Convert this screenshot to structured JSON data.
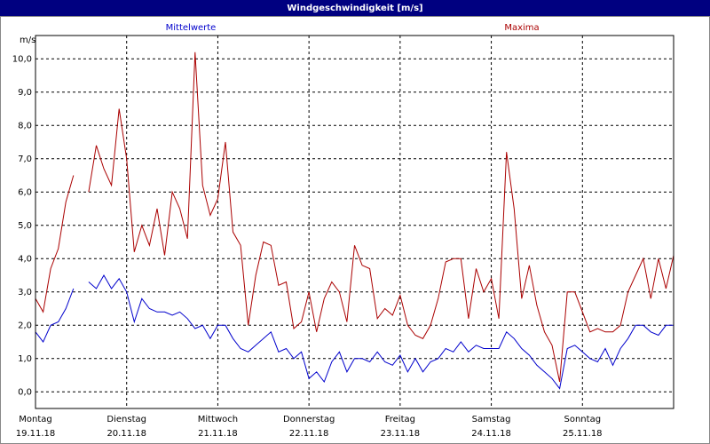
{
  "chart_data": {
    "type": "line",
    "title": "Windgeschwindigkeit [m/s]",
    "y_label": "m/s",
    "x": [
      0,
      2,
      4,
      6,
      8,
      10,
      12,
      14,
      16,
      18,
      20,
      22,
      24,
      26,
      28,
      30,
      32,
      34,
      36,
      38,
      40,
      42,
      44,
      46,
      48,
      50,
      52,
      54,
      56,
      58,
      60,
      62,
      64,
      66,
      68,
      70,
      72,
      74,
      76,
      78,
      80,
      82,
      84,
      86,
      88,
      90,
      92,
      94,
      96,
      98,
      100,
      102,
      104,
      106,
      108,
      110,
      112,
      114,
      116,
      118,
      120,
      122,
      124,
      126,
      128,
      130,
      132,
      134,
      136,
      138,
      140,
      142,
      144,
      146,
      148,
      150,
      152,
      154,
      156,
      158,
      160,
      162,
      164,
      166,
      168
    ],
    "series": [
      {
        "name": "Mittelwerte",
        "color": "#0000cc",
        "values": [
          1.8,
          1.5,
          2.0,
          2.1,
          2.5,
          3.1,
          null,
          3.3,
          3.1,
          3.5,
          3.1,
          3.4,
          3.0,
          2.1,
          2.8,
          2.5,
          2.4,
          2.4,
          2.3,
          2.4,
          2.2,
          1.9,
          2.0,
          1.6,
          2.0,
          2.0,
          1.6,
          1.3,
          1.2,
          1.4,
          1.6,
          1.8,
          1.2,
          1.3,
          1.0,
          1.2,
          0.4,
          0.6,
          0.3,
          0.9,
          1.2,
          0.6,
          1.0,
          1.0,
          0.9,
          1.2,
          0.9,
          0.8,
          1.1,
          0.6,
          1.0,
          0.6,
          0.9,
          1.0,
          1.3,
          1.2,
          1.5,
          1.2,
          1.4,
          1.3,
          1.3,
          1.3,
          1.8,
          1.6,
          1.3,
          1.1,
          0.8,
          0.6,
          0.4,
          0.1,
          1.3,
          1.4,
          1.2,
          1.0,
          0.9,
          1.3,
          0.8,
          1.3,
          1.6,
          2.0,
          2.0,
          1.8,
          1.7,
          2.0,
          2.0
        ]
      },
      {
        "name": "Maxima",
        "color": "#aa0000",
        "values": [
          2.8,
          2.4,
          3.7,
          4.3,
          5.7,
          6.5,
          null,
          6.0,
          7.4,
          6.7,
          6.2,
          8.5,
          7.0,
          4.2,
          5.0,
          4.4,
          5.5,
          4.1,
          6.0,
          5.5,
          4.6,
          10.2,
          6.2,
          5.3,
          5.8,
          7.5,
          4.8,
          4.4,
          2.0,
          3.5,
          4.5,
          4.4,
          3.2,
          3.3,
          1.9,
          2.1,
          3.0,
          1.8,
          2.8,
          3.3,
          3.0,
          2.1,
          4.4,
          3.8,
          3.7,
          2.2,
          2.5,
          2.3,
          2.9,
          2.0,
          1.7,
          1.6,
          2.0,
          2.8,
          3.9,
          4.0,
          4.0,
          2.2,
          3.7,
          3.0,
          3.4,
          2.2,
          7.2,
          5.5,
          2.8,
          3.8,
          2.6,
          1.8,
          1.4,
          0.3,
          3.0,
          3.0,
          2.4,
          1.8,
          1.9,
          1.8,
          1.8,
          2.0,
          3.0,
          3.5,
          4.0,
          2.8,
          4.0,
          3.1,
          4.1
        ]
      }
    ],
    "xlim": [
      0,
      168
    ],
    "xticks": [
      {
        "value": 0,
        "label": "Montag",
        "date": "19.11.18"
      },
      {
        "value": 24,
        "label": "Dienstag",
        "date": "20.11.18"
      },
      {
        "value": 48,
        "label": "Mittwoch",
        "date": "21.11.18"
      },
      {
        "value": 72,
        "label": "Donnerstag",
        "date": "22.11.18"
      },
      {
        "value": 96,
        "label": "Freitag",
        "date": "23.11.18"
      },
      {
        "value": 120,
        "label": "Samstag",
        "date": "24.11.18"
      },
      {
        "value": 144,
        "label": "Sonntag",
        "date": "25.11.18"
      }
    ],
    "ylim": [
      -0.5,
      10.7
    ],
    "yticks": [
      {
        "value": 0,
        "label": "0,0"
      },
      {
        "value": 1,
        "label": "1,0"
      },
      {
        "value": 2,
        "label": "2,0"
      },
      {
        "value": 3,
        "label": "3,0"
      },
      {
        "value": 4,
        "label": "4,0"
      },
      {
        "value": 5,
        "label": "5,0"
      },
      {
        "value": 6,
        "label": "6,0"
      },
      {
        "value": 7,
        "label": "7,0"
      },
      {
        "value": 8,
        "label": "8,0"
      },
      {
        "value": 9,
        "label": "9,0"
      },
      {
        "value": 10,
        "label": "10,0"
      }
    ],
    "grid": true
  }
}
